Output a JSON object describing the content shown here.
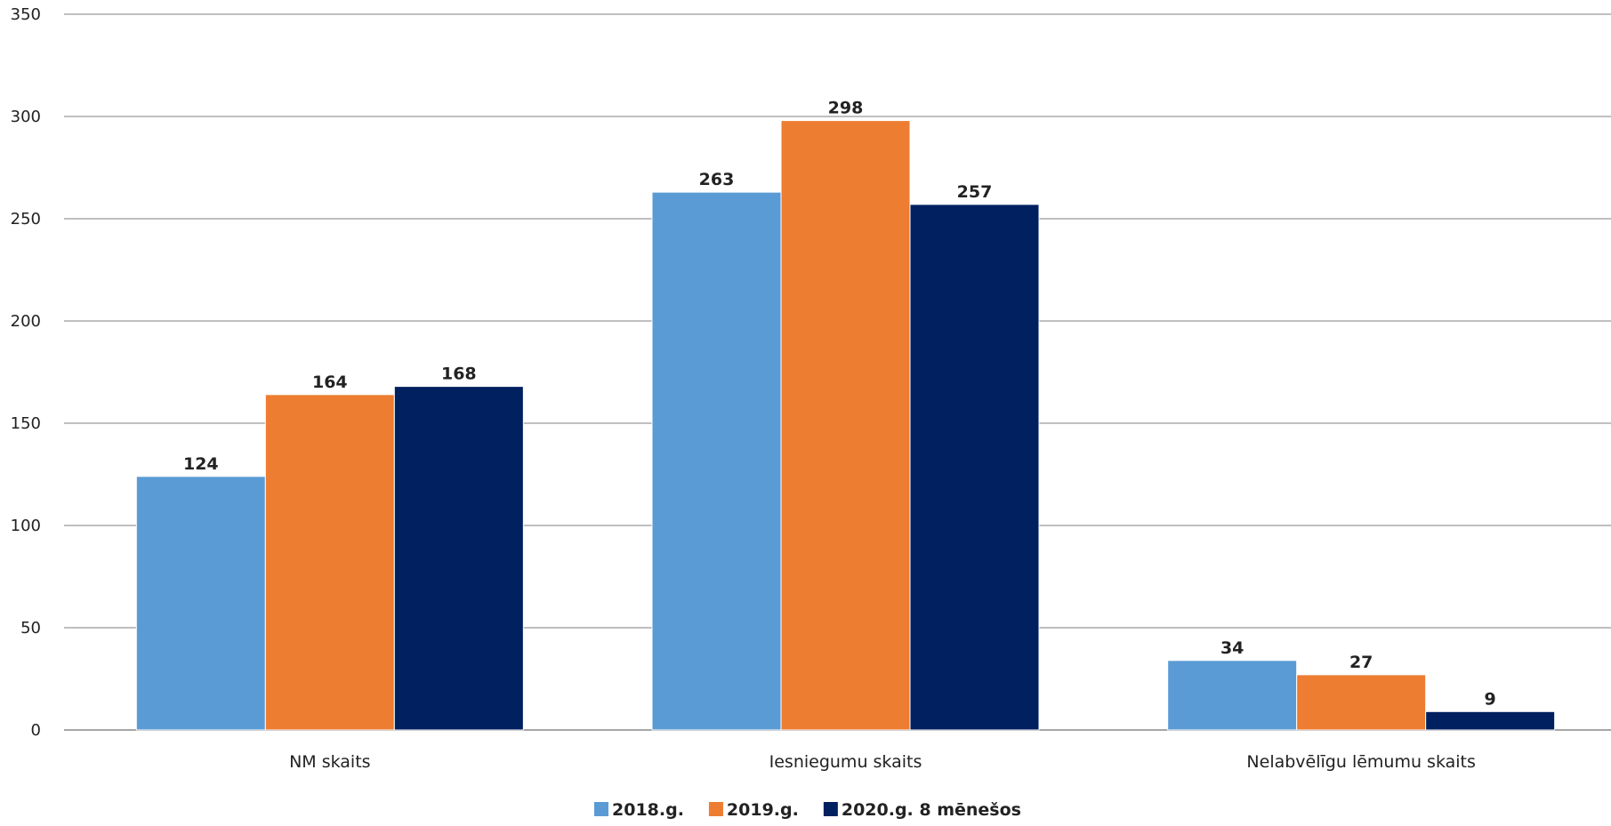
{
  "chart_data": {
    "type": "bar",
    "categories": [
      "NM skaits",
      "Iesniegumu skaits",
      "Nelabvēlīgu lēmumu skaits"
    ],
    "series": [
      {
        "name": "2018.g.",
        "values": [
          124,
          263,
          34
        ],
        "color": "#5b9bd5"
      },
      {
        "name": "2019.g.",
        "values": [
          164,
          298,
          27
        ],
        "color": "#ed7d31"
      },
      {
        "name": "2020.g. 8 mēnešos",
        "values": [
          168,
          257,
          9
        ],
        "color": "#002060"
      }
    ],
    "ylim": [
      0,
      350
    ],
    "yticks": [
      0,
      50,
      100,
      150,
      200,
      250,
      300,
      350
    ],
    "grid": true,
    "legend_position": "bottom"
  }
}
